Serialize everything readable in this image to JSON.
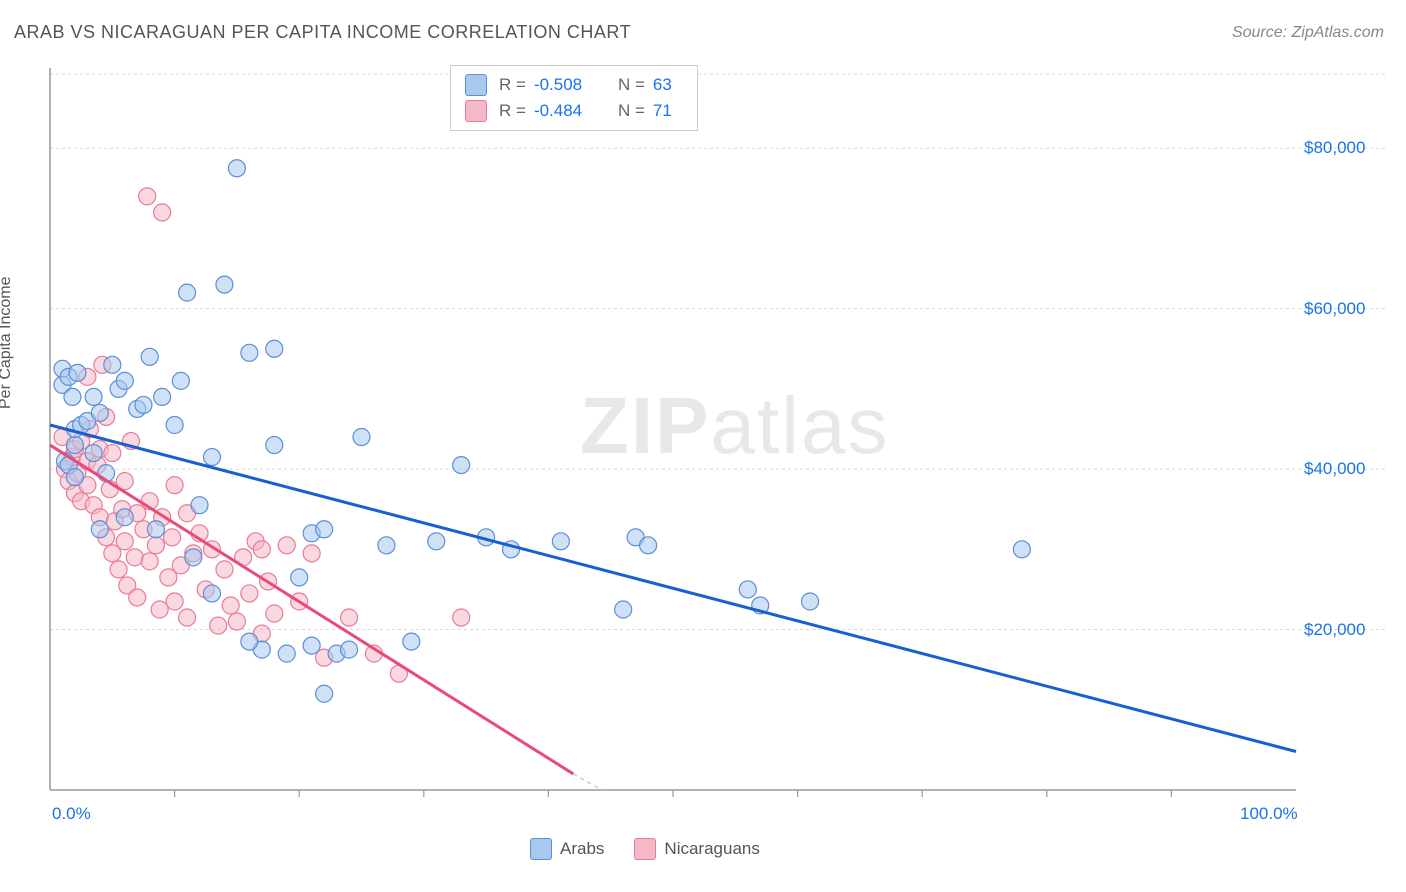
{
  "title": "ARAB VS NICARAGUAN PER CAPITA INCOME CORRELATION CHART",
  "source": "Source: ZipAtlas.com",
  "watermark": {
    "zip": "ZIP",
    "atlas": "atlas"
  },
  "chart": {
    "type": "scatter",
    "y_axis_label": "Per Capita Income",
    "xlim": [
      0,
      100
    ],
    "ylim": [
      0,
      90000
    ],
    "x_ticks": [
      10,
      20,
      30,
      40,
      50,
      60,
      70,
      80,
      90
    ],
    "x_tick_labels_shown": [
      {
        "v": 0,
        "label": "0.0%"
      },
      {
        "v": 100,
        "label": "100.0%"
      }
    ],
    "y_ticks": [
      20000,
      40000,
      60000,
      80000
    ],
    "y_tick_labels": [
      "$20,000",
      "$40,000",
      "$60,000",
      "$80,000"
    ],
    "grid_color": "#d9d9d9",
    "axis_color": "#999999",
    "background_color": "#ffffff",
    "marker_radius": 8.5,
    "marker_stroke_width": 1.2,
    "trendline_width": 3,
    "series": [
      {
        "name": "Arabs",
        "fill": "#a8c8ee",
        "stroke": "#5b8fd6",
        "fill_opacity": 0.55,
        "r": "-0.508",
        "n": "63",
        "trendline": {
          "x1": 0,
          "y1": 45500,
          "x2": 100,
          "y2": 4800,
          "color": "#1a5fd0"
        },
        "points": [
          [
            1,
            52500
          ],
          [
            1,
            50500
          ],
          [
            1.2,
            41000
          ],
          [
            1.5,
            40500
          ],
          [
            1.5,
            51500
          ],
          [
            1.8,
            49000
          ],
          [
            2,
            43000
          ],
          [
            2,
            39000
          ],
          [
            2,
            45000
          ],
          [
            2.2,
            52000
          ],
          [
            2.5,
            45500
          ],
          [
            3,
            46000
          ],
          [
            3.5,
            42000
          ],
          [
            3.5,
            49000
          ],
          [
            4,
            47000
          ],
          [
            4,
            32500
          ],
          [
            4.5,
            39500
          ],
          [
            5,
            53000
          ],
          [
            5.5,
            50000
          ],
          [
            6,
            51000
          ],
          [
            7,
            47500
          ],
          [
            7.5,
            48000
          ],
          [
            8,
            54000
          ],
          [
            9,
            49000
          ],
          [
            10,
            45500
          ],
          [
            10.5,
            51000
          ],
          [
            8.5,
            32500
          ],
          [
            11,
            62000
          ],
          [
            12,
            35500
          ],
          [
            13,
            41500
          ],
          [
            14,
            63000
          ],
          [
            11.5,
            29000
          ],
          [
            13,
            24500
          ],
          [
            15,
            77500
          ],
          [
            16,
            54500
          ],
          [
            17,
            17500
          ],
          [
            18,
            43000
          ],
          [
            18,
            55000
          ],
          [
            19,
            17000
          ],
          [
            20,
            26500
          ],
          [
            21,
            32000
          ],
          [
            21,
            18000
          ],
          [
            22,
            12000
          ],
          [
            22,
            32500
          ],
          [
            23,
            17000
          ],
          [
            24,
            17500
          ],
          [
            25,
            44000
          ],
          [
            27,
            30500
          ],
          [
            29,
            18500
          ],
          [
            31,
            31000
          ],
          [
            33,
            40500
          ],
          [
            35,
            31500
          ],
          [
            37,
            30000
          ],
          [
            41,
            31000
          ],
          [
            46,
            22500
          ],
          [
            47,
            31500
          ],
          [
            48,
            30500
          ],
          [
            56,
            25000
          ],
          [
            57,
            23000
          ],
          [
            61,
            23500
          ],
          [
            78,
            30000
          ],
          [
            16,
            18500
          ],
          [
            6,
            34000
          ]
        ]
      },
      {
        "name": "Nicaguarans_internal",
        "label": "Nicaraguans",
        "fill": "#f5b8c7",
        "stroke": "#e87b98",
        "fill_opacity": 0.55,
        "r": "-0.484",
        "n": "71",
        "trendline": {
          "x1": 0,
          "y1": 43000,
          "x2": 42,
          "y2": 2000,
          "color": "#e84a7a",
          "dash_ext": true,
          "dash_x2": 50,
          "dash_y2": -5000
        },
        "points": [
          [
            1,
            44000
          ],
          [
            1.2,
            40000
          ],
          [
            1.5,
            38500
          ],
          [
            1.8,
            41500
          ],
          [
            2,
            42500
          ],
          [
            2,
            37000
          ],
          [
            2.2,
            39500
          ],
          [
            2.5,
            43500
          ],
          [
            2.5,
            36000
          ],
          [
            3,
            38000
          ],
          [
            3,
            41000
          ],
          [
            3.2,
            45000
          ],
          [
            3.5,
            35500
          ],
          [
            3.8,
            40500
          ],
          [
            4,
            34000
          ],
          [
            4,
            42500
          ],
          [
            4.2,
            53000
          ],
          [
            4.5,
            31500
          ],
          [
            4.8,
            37500
          ],
          [
            5,
            29500
          ],
          [
            5,
            42000
          ],
          [
            5.2,
            33500
          ],
          [
            5.5,
            27500
          ],
          [
            5.8,
            35000
          ],
          [
            6,
            31000
          ],
          [
            6,
            38500
          ],
          [
            6.2,
            25500
          ],
          [
            6.5,
            43500
          ],
          [
            6.8,
            29000
          ],
          [
            7,
            34500
          ],
          [
            7,
            24000
          ],
          [
            7.5,
            32500
          ],
          [
            7.8,
            74000
          ],
          [
            8,
            28500
          ],
          [
            8,
            36000
          ],
          [
            8.5,
            30500
          ],
          [
            8.8,
            22500
          ],
          [
            9,
            34000
          ],
          [
            9,
            72000
          ],
          [
            9.5,
            26500
          ],
          [
            9.8,
            31500
          ],
          [
            10,
            23500
          ],
          [
            10,
            38000
          ],
          [
            10.5,
            28000
          ],
          [
            11,
            21500
          ],
          [
            11,
            34500
          ],
          [
            11.5,
            29500
          ],
          [
            12,
            32000
          ],
          [
            12.5,
            25000
          ],
          [
            13,
            30000
          ],
          [
            13.5,
            20500
          ],
          [
            14,
            27500
          ],
          [
            14.5,
            23000
          ],
          [
            15,
            21000
          ],
          [
            15.5,
            29000
          ],
          [
            16,
            24500
          ],
          [
            16.5,
            31000
          ],
          [
            17,
            19500
          ],
          [
            17,
            30000
          ],
          [
            17.5,
            26000
          ],
          [
            18,
            22000
          ],
          [
            19,
            30500
          ],
          [
            20,
            23500
          ],
          [
            21,
            29500
          ],
          [
            22,
            16500
          ],
          [
            24,
            21500
          ],
          [
            26,
            17000
          ],
          [
            28,
            14500
          ],
          [
            33,
            21500
          ],
          [
            3,
            51500
          ],
          [
            4.5,
            46500
          ]
        ]
      }
    ]
  },
  "legend_bottom": [
    {
      "label": "Arabs",
      "fill": "#a8c8ee",
      "stroke": "#5b8fd6"
    },
    {
      "label": "Nicaraguans",
      "fill": "#f5b8c7",
      "stroke": "#e87b98"
    }
  ]
}
